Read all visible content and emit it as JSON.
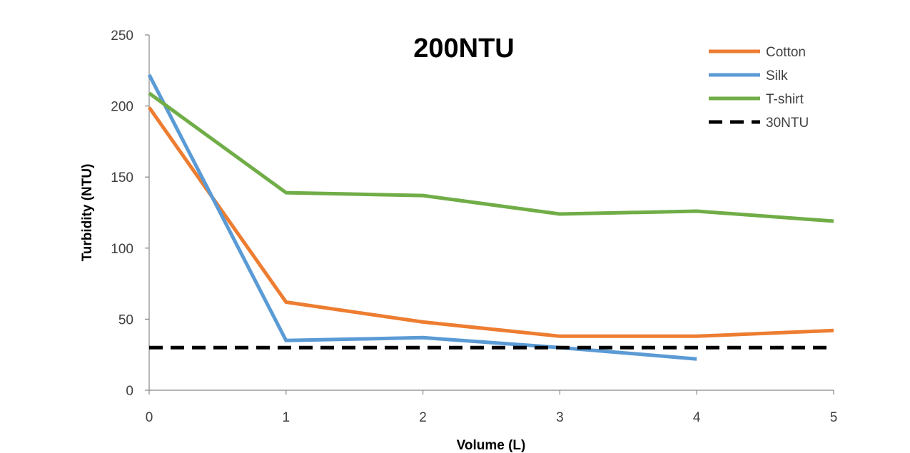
{
  "chart_data": {
    "type": "line",
    "title": "200NTU",
    "xlabel": "Volume (L)",
    "ylabel": "Turbidity (NTU)",
    "xlim": [
      0,
      5
    ],
    "ylim": [
      0,
      250
    ],
    "xticks": [
      0,
      1,
      2,
      3,
      4,
      5
    ],
    "yticks": [
      0,
      50,
      100,
      150,
      200,
      250
    ],
    "grid": false,
    "legend_position": "top-right",
    "series": [
      {
        "name": "Cotton",
        "color": "#ED7D31",
        "dash": "solid",
        "x": [
          0,
          1,
          2,
          3,
          4,
          5
        ],
        "y": [
          199,
          62,
          48,
          38,
          38,
          42
        ]
      },
      {
        "name": "Silk",
        "color": "#5B9BD5",
        "dash": "solid",
        "x": [
          0,
          1,
          2,
          3,
          4
        ],
        "y": [
          222,
          35,
          37,
          30,
          22
        ]
      },
      {
        "name": "T-shirt",
        "color": "#70AD47",
        "dash": "solid",
        "x": [
          0,
          1,
          2,
          3,
          4,
          5
        ],
        "y": [
          209,
          139,
          137,
          124,
          126,
          119
        ]
      },
      {
        "name": "30NTU",
        "color": "#000000",
        "dash": "dashed",
        "x": [
          0,
          1,
          2,
          3,
          4,
          5
        ],
        "y": [
          30,
          30,
          30,
          30,
          30,
          30
        ]
      }
    ]
  }
}
